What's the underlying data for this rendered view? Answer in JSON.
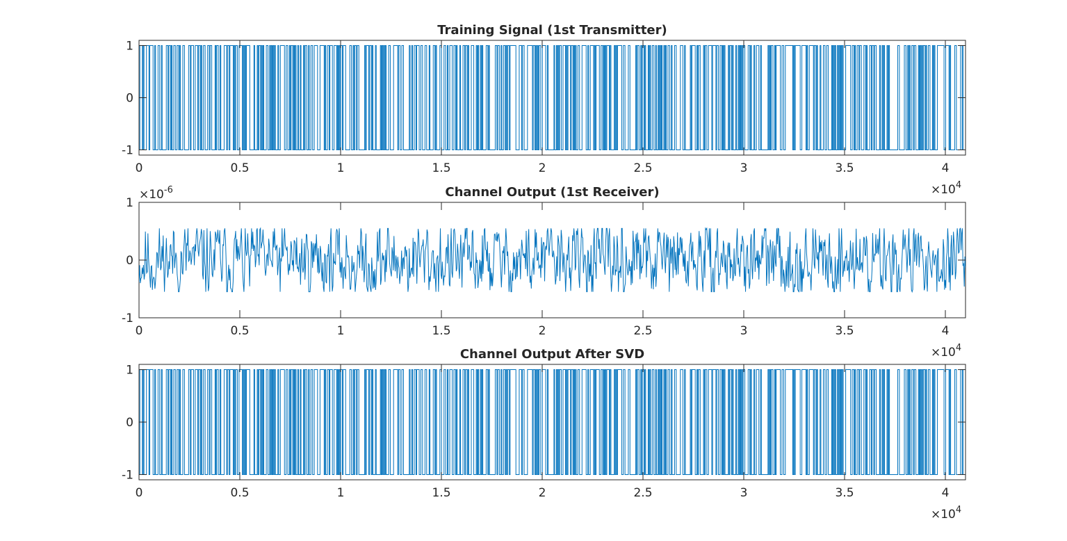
{
  "figure": {
    "background": "#ffffff",
    "axes_color": "#262626",
    "line_color": "#0072BD"
  },
  "chart_data": [
    {
      "type": "line",
      "title": "Training Signal (1st Transmitter)",
      "xlabel": "",
      "ylabel": "",
      "xlim": [
        0,
        41000
      ],
      "ylim": [
        -1.1,
        1.1
      ],
      "x_ticks": [
        0,
        5000,
        10000,
        15000,
        20000,
        25000,
        30000,
        35000,
        40000
      ],
      "x_tick_labels": [
        "0",
        "0.5",
        "1",
        "1.5",
        "2",
        "2.5",
        "3",
        "3.5",
        "4"
      ],
      "y_ticks": [
        -1,
        0,
        1
      ],
      "y_tick_labels": [
        "-1",
        "0",
        "1"
      ],
      "x_exponent_base": "×10",
      "x_exponent_power": "4",
      "y_exponent_base": "",
      "y_exponent_power": "",
      "grid": false,
      "series": [
        {
          "kind": "bpsk",
          "samples": 41000,
          "values": [
            -1,
            1
          ],
          "seed": 7
        }
      ]
    },
    {
      "type": "line",
      "title": "Channel Output (1st Receiver)",
      "xlabel": "",
      "ylabel": "",
      "xlim": [
        0,
        41000
      ],
      "ylim": [
        -1,
        1
      ],
      "x_ticks": [
        0,
        5000,
        10000,
        15000,
        20000,
        25000,
        30000,
        35000,
        40000
      ],
      "x_tick_labels": [
        "0",
        "0.5",
        "1",
        "1.5",
        "2",
        "2.5",
        "3",
        "3.5",
        "4"
      ],
      "y_ticks": [
        -1,
        0,
        1
      ],
      "y_tick_labels": [
        "-1",
        "0",
        "1"
      ],
      "x_exponent_base": "×10",
      "x_exponent_power": "4",
      "y_exponent_base": "×10",
      "y_exponent_power": "-6",
      "grid": false,
      "series": [
        {
          "kind": "noise",
          "samples": 41000,
          "amplitude": 0.55,
          "seed": 11
        }
      ]
    },
    {
      "type": "line",
      "title": "Channel Output After SVD",
      "xlabel": "",
      "ylabel": "",
      "xlim": [
        0,
        41000
      ],
      "ylim": [
        -1.1,
        1.1
      ],
      "x_ticks": [
        0,
        5000,
        10000,
        15000,
        20000,
        25000,
        30000,
        35000,
        40000
      ],
      "x_tick_labels": [
        "0",
        "0.5",
        "1",
        "1.5",
        "2",
        "2.5",
        "3",
        "3.5",
        "4"
      ],
      "y_ticks": [
        -1,
        0,
        1
      ],
      "y_tick_labels": [
        "-1",
        "0",
        "1"
      ],
      "x_exponent_base": "×10",
      "x_exponent_power": "4",
      "y_exponent_base": "",
      "y_exponent_power": "",
      "grid": false,
      "series": [
        {
          "kind": "bpsk",
          "samples": 41000,
          "values": [
            -1,
            1
          ],
          "seed": 7
        }
      ]
    }
  ]
}
